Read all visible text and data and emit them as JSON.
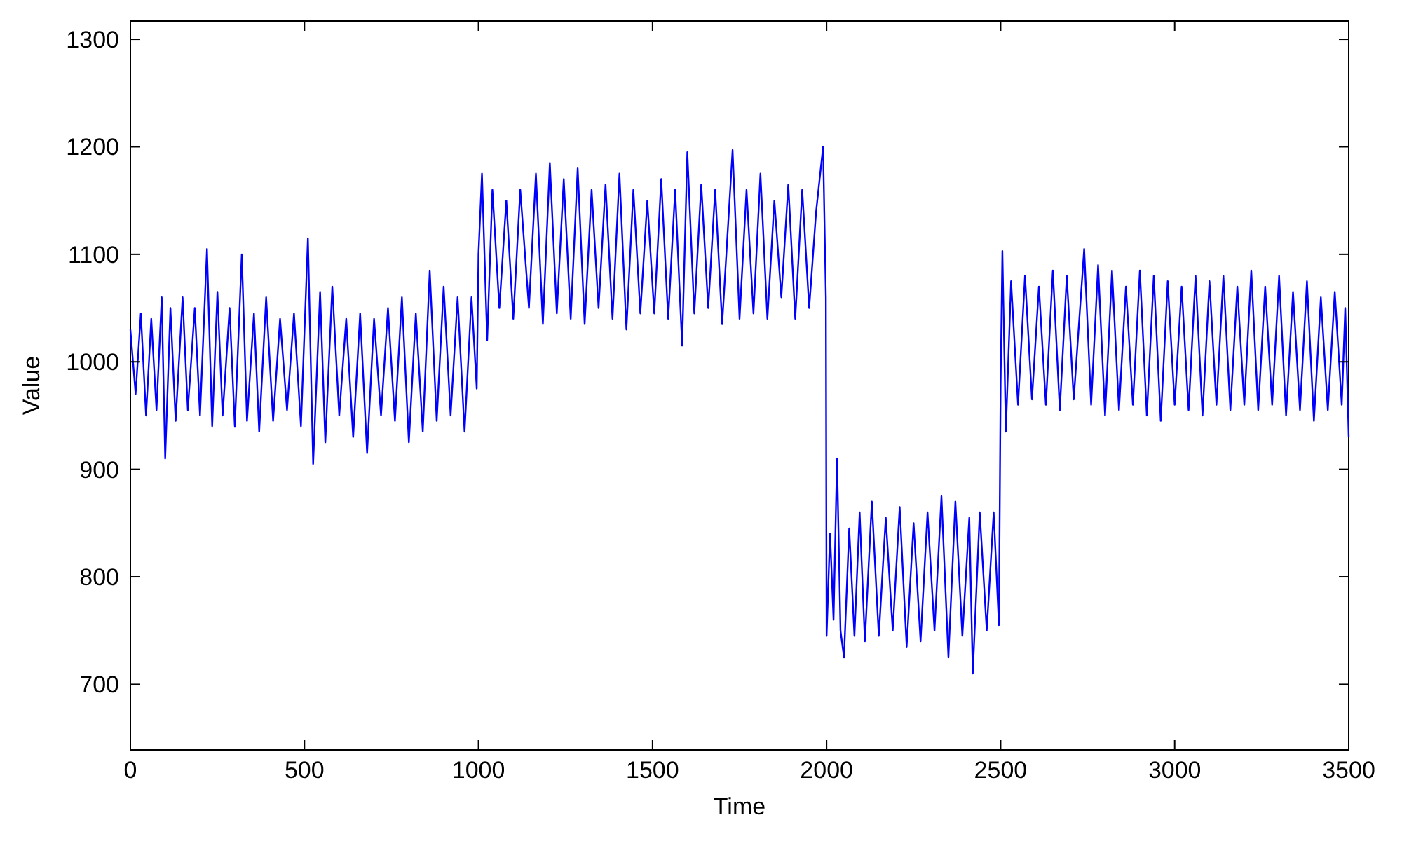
{
  "chart_data": {
    "type": "line",
    "xlabel": "Time",
    "ylabel": "Value",
    "xlim": [
      0,
      3500
    ],
    "ylim": [
      639,
      1317
    ],
    "xticks": [
      0,
      500,
      1000,
      1500,
      2000,
      2500,
      3000,
      3500
    ],
    "yticks": [
      700,
      800,
      900,
      1000,
      1100,
      1200,
      1300
    ],
    "grid": false,
    "line_style": "solid",
    "x": [
      0,
      15,
      30,
      45,
      60,
      75,
      90,
      100,
      115,
      130,
      150,
      165,
      185,
      200,
      220,
      235,
      250,
      265,
      285,
      300,
      320,
      335,
      355,
      370,
      390,
      410,
      430,
      450,
      470,
      490,
      510,
      525,
      545,
      560,
      580,
      600,
      620,
      640,
      660,
      680,
      700,
      720,
      740,
      760,
      780,
      800,
      820,
      840,
      860,
      880,
      900,
      920,
      940,
      960,
      980,
      995,
      1000,
      1010,
      1025,
      1040,
      1060,
      1080,
      1100,
      1120,
      1145,
      1165,
      1185,
      1205,
      1225,
      1245,
      1265,
      1285,
      1305,
      1325,
      1345,
      1365,
      1385,
      1405,
      1425,
      1445,
      1465,
      1485,
      1505,
      1525,
      1545,
      1565,
      1585,
      1600,
      1620,
      1640,
      1660,
      1680,
      1700,
      1730,
      1750,
      1770,
      1790,
      1810,
      1830,
      1850,
      1870,
      1890,
      1910,
      1930,
      1950,
      1970,
      1990,
      1998,
      2000,
      2010,
      2020,
      2030,
      2040,
      2050,
      2065,
      2080,
      2095,
      2110,
      2130,
      2150,
      2170,
      2190,
      2210,
      2230,
      2250,
      2270,
      2290,
      2310,
      2330,
      2350,
      2370,
      2390,
      2410,
      2420,
      2440,
      2460,
      2480,
      2495,
      2500,
      2505,
      2515,
      2530,
      2550,
      2570,
      2590,
      2610,
      2630,
      2650,
      2670,
      2690,
      2710,
      2740,
      2760,
      2780,
      2800,
      2820,
      2840,
      2860,
      2880,
      2900,
      2920,
      2940,
      2960,
      2980,
      3000,
      3020,
      3040,
      3060,
      3080,
      3100,
      3120,
      3140,
      3160,
      3180,
      3200,
      3220,
      3240,
      3260,
      3280,
      3300,
      3320,
      3340,
      3360,
      3380,
      3400,
      3420,
      3440,
      3460,
      3480,
      3490,
      3500
    ],
    "series": [
      {
        "color": "#0000ff",
        "values": [
          1030,
          970,
          1045,
          950,
          1040,
          955,
          1060,
          910,
          1050,
          945,
          1060,
          955,
          1050,
          950,
          1105,
          940,
          1065,
          950,
          1050,
          940,
          1100,
          945,
          1045,
          935,
          1060,
          945,
          1040,
          955,
          1045,
          940,
          1115,
          905,
          1065,
          925,
          1070,
          950,
          1040,
          930,
          1045,
          915,
          1040,
          950,
          1050,
          945,
          1060,
          925,
          1045,
          935,
          1085,
          945,
          1070,
          950,
          1060,
          935,
          1060,
          975,
          1100,
          1175,
          1020,
          1160,
          1050,
          1150,
          1040,
          1160,
          1050,
          1175,
          1035,
          1185,
          1045,
          1170,
          1040,
          1180,
          1035,
          1160,
          1050,
          1165,
          1040,
          1175,
          1030,
          1160,
          1045,
          1150,
          1045,
          1170,
          1040,
          1160,
          1015,
          1195,
          1045,
          1165,
          1050,
          1160,
          1035,
          1197,
          1040,
          1160,
          1045,
          1175,
          1040,
          1150,
          1060,
          1165,
          1040,
          1160,
          1050,
          1140,
          1200,
          1060,
          745,
          840,
          760,
          910,
          750,
          725,
          845,
          745,
          860,
          740,
          870,
          745,
          855,
          750,
          865,
          735,
          850,
          740,
          860,
          750,
          875,
          725,
          870,
          745,
          855,
          710,
          860,
          750,
          860,
          755,
          980,
          1103,
          935,
          1075,
          960,
          1080,
          965,
          1070,
          960,
          1085,
          955,
          1080,
          965,
          1105,
          960,
          1090,
          950,
          1085,
          955,
          1070,
          960,
          1085,
          950,
          1080,
          945,
          1075,
          960,
          1070,
          955,
          1080,
          950,
          1075,
          960,
          1080,
          955,
          1070,
          960,
          1085,
          955,
          1070,
          960,
          1080,
          950,
          1065,
          955,
          1075,
          945,
          1060,
          955,
          1065,
          960,
          1050,
          930
        ]
      }
    ]
  }
}
